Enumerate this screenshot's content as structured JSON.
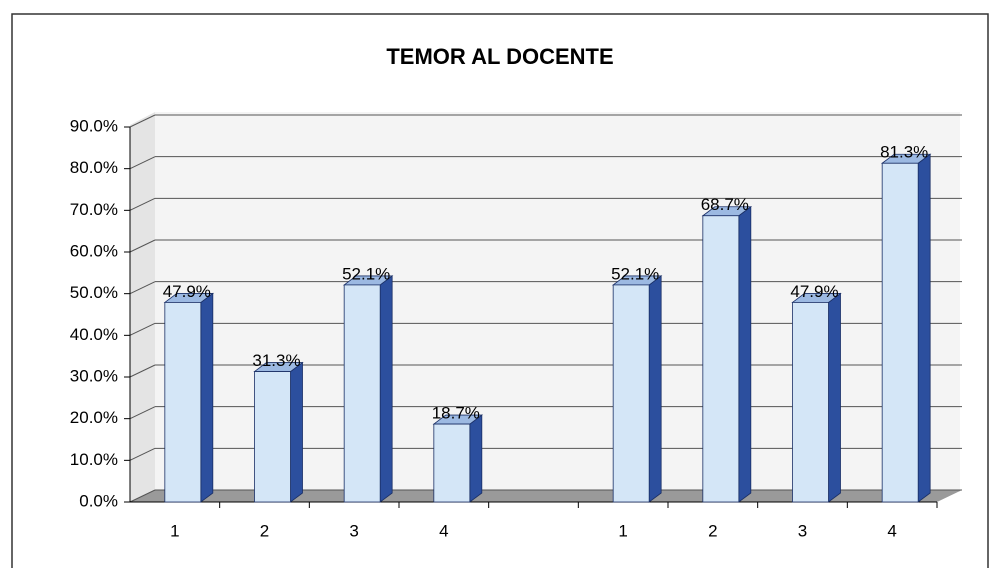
{
  "chart_data": {
    "type": "bar3d",
    "title": "TEMOR AL DOCENTE",
    "categories": [
      "1",
      "2",
      "3",
      "4",
      null,
      "1",
      "2",
      "3",
      "4"
    ],
    "values": [
      47.9,
      31.3,
      52.1,
      18.7,
      null,
      52.1,
      68.7,
      47.9,
      81.3
    ],
    "value_labels": [
      "47.9%",
      "31.3%",
      "52.1%",
      "18.7%",
      null,
      "52.1%",
      "68.7%",
      "47.9%",
      "81.3%"
    ],
    "color": "#d4e6f7",
    "side_color": "#2c4f9e",
    "ylim": [
      0,
      90
    ],
    "yticks": [
      {
        "value": 0,
        "label": "0.0%"
      },
      {
        "value": 10,
        "label": "10.0%"
      },
      {
        "value": 20,
        "label": "20.0%"
      },
      {
        "value": 30,
        "label": "30.0%"
      },
      {
        "value": 40,
        "label": "40.0%"
      },
      {
        "value": 50,
        "label": "50.0%"
      },
      {
        "value": 60,
        "label": "60.0%"
      },
      {
        "value": 70,
        "label": "70.0%"
      },
      {
        "value": 80,
        "label": "80.0%"
      },
      {
        "value": 90,
        "label": "90.0%"
      }
    ],
    "grid": true
  }
}
